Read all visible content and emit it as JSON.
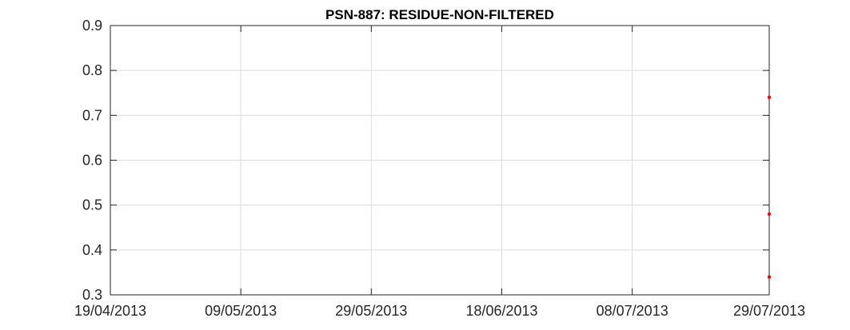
{
  "chart_data": {
    "type": "scatter",
    "title": "PSN-887: RESIDUE-NON-FILTERED",
    "xlabel": "",
    "ylabel": "",
    "x_axis": {
      "type": "date",
      "min": "2013-04-19",
      "max": "2013-07-29",
      "ticks": [
        {
          "date": "2013-04-19",
          "label": "19/04/2013"
        },
        {
          "date": "2013-05-09",
          "label": "09/05/2013"
        },
        {
          "date": "2013-05-29",
          "label": "29/05/2013"
        },
        {
          "date": "2013-06-18",
          "label": "18/06/2013"
        },
        {
          "date": "2013-07-08",
          "label": "08/07/2013"
        },
        {
          "date": "2013-07-29",
          "label": "29/07/2013"
        }
      ]
    },
    "y_axis": {
      "min": 0.3,
      "max": 0.9,
      "ticks": [
        "0.3",
        "0.4",
        "0.5",
        "0.6",
        "0.7",
        "0.8",
        "0.9"
      ]
    },
    "grid": true,
    "series": [
      {
        "color": "#ff0000",
        "points": [
          {
            "x": "2013-07-29",
            "y": 0.74
          },
          {
            "x": "2013-07-29",
            "y": 0.48
          },
          {
            "x": "2013-07-29",
            "y": 0.34
          }
        ]
      }
    ]
  }
}
